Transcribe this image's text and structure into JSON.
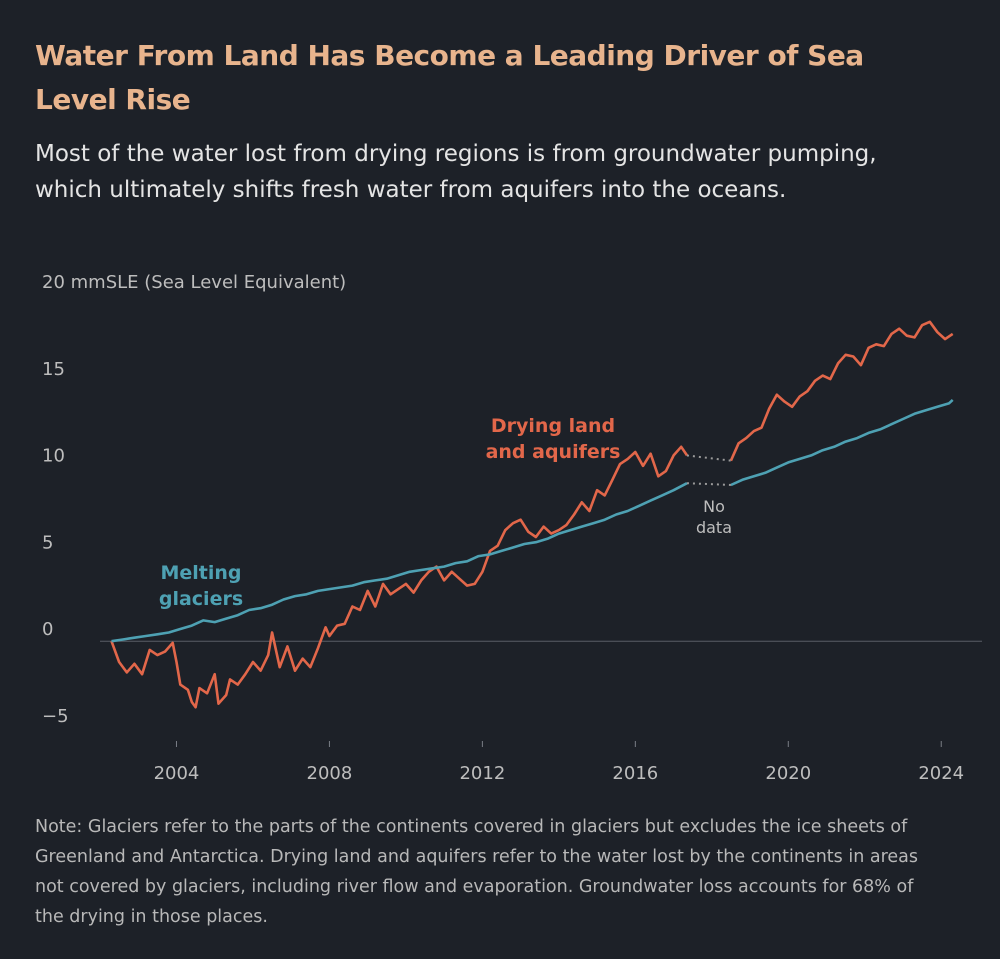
{
  "header": {
    "title": "Water From Land Has Become a Leading Driver of Sea Level Rise",
    "subtitle": "Most of the water lost from drying regions is from groundwater pumping, which ultimately shifts fresh water from aquifers into the oceans."
  },
  "note": "Note: Glaciers refer to the parts of the continents covered in glaciers but excludes the ice sheets of Greenland and Antarctica. Drying land and aquifers refer to the water lost by the continents in areas not covered by glaciers, including river flow and evaporation. Groundwater loss accounts for 68% of the drying in those places.",
  "colors": {
    "background": "#1d2128",
    "drying": "#e2674a",
    "glaciers": "#4ea1b3",
    "title": "#e8b48d",
    "gap": "#9a9a9a"
  },
  "chart_data": {
    "type": "line",
    "ylabel": "mmSLE (Sea Level Equivalent)",
    "ylim": [
      -5,
      20
    ],
    "xlim": [
      2002,
      2024.7
    ],
    "y_ticks": [
      {
        "value": 20,
        "label": "20 mmSLE (Sea Level Equivalent)"
      },
      {
        "value": 15,
        "label": "15"
      },
      {
        "value": 10,
        "label": "10"
      },
      {
        "value": 5,
        "label": "5"
      },
      {
        "value": 0,
        "label": "0"
      },
      {
        "value": -5,
        "label": "−5"
      }
    ],
    "x_ticks": [
      {
        "value": 2004,
        "label": "2004"
      },
      {
        "value": 2008,
        "label": "2008"
      },
      {
        "value": 2012,
        "label": "2012"
      },
      {
        "value": 2016,
        "label": "2016"
      },
      {
        "value": 2020,
        "label": "2020"
      },
      {
        "value": 2024,
        "label": "2024"
      }
    ],
    "gap_label": [
      "No",
      "data"
    ],
    "gap": [
      2017.5,
      2018.5
    ],
    "series": [
      {
        "name": "Drying land and aquifers",
        "label_lines": [
          "Drying land",
          "and aquifers"
        ],
        "points": [
          [
            2002.3,
            0
          ],
          [
            2002.5,
            -1.2
          ],
          [
            2002.7,
            -1.8
          ],
          [
            2002.9,
            -1.3
          ],
          [
            2003.1,
            -1.9
          ],
          [
            2003.3,
            -0.5
          ],
          [
            2003.5,
            -0.8
          ],
          [
            2003.7,
            -0.6
          ],
          [
            2003.9,
            -0.1
          ],
          [
            2004.0,
            -1.2
          ],
          [
            2004.1,
            -2.5
          ],
          [
            2004.3,
            -2.8
          ],
          [
            2004.4,
            -3.5
          ],
          [
            2004.5,
            -3.8
          ],
          [
            2004.6,
            -2.7
          ],
          [
            2004.8,
            -3.0
          ],
          [
            2005.0,
            -1.9
          ],
          [
            2005.1,
            -3.6
          ],
          [
            2005.3,
            -3.1
          ],
          [
            2005.4,
            -2.2
          ],
          [
            2005.6,
            -2.5
          ],
          [
            2005.8,
            -1.9
          ],
          [
            2006.0,
            -1.2
          ],
          [
            2006.2,
            -1.7
          ],
          [
            2006.4,
            -0.8
          ],
          [
            2006.5,
            0.5
          ],
          [
            2006.7,
            -1.5
          ],
          [
            2006.9,
            -0.3
          ],
          [
            2007.1,
            -1.7
          ],
          [
            2007.3,
            -1.0
          ],
          [
            2007.5,
            -1.5
          ],
          [
            2007.7,
            -0.4
          ],
          [
            2007.9,
            0.8
          ],
          [
            2008.0,
            0.3
          ],
          [
            2008.2,
            0.9
          ],
          [
            2008.4,
            1.0
          ],
          [
            2008.6,
            2.0
          ],
          [
            2008.8,
            1.8
          ],
          [
            2009.0,
            2.9
          ],
          [
            2009.2,
            2.0
          ],
          [
            2009.4,
            3.3
          ],
          [
            2009.6,
            2.7
          ],
          [
            2009.8,
            3.0
          ],
          [
            2010.0,
            3.3
          ],
          [
            2010.2,
            2.8
          ],
          [
            2010.4,
            3.5
          ],
          [
            2010.6,
            4.0
          ],
          [
            2010.8,
            4.3
          ],
          [
            2011.0,
            3.5
          ],
          [
            2011.2,
            4.0
          ],
          [
            2011.4,
            3.6
          ],
          [
            2011.6,
            3.2
          ],
          [
            2011.8,
            3.3
          ],
          [
            2012.0,
            4.0
          ],
          [
            2012.2,
            5.2
          ],
          [
            2012.4,
            5.5
          ],
          [
            2012.6,
            6.4
          ],
          [
            2012.8,
            6.8
          ],
          [
            2013.0,
            7.0
          ],
          [
            2013.2,
            6.3
          ],
          [
            2013.4,
            6.0
          ],
          [
            2013.6,
            6.6
          ],
          [
            2013.8,
            6.2
          ],
          [
            2014.0,
            6.4
          ],
          [
            2014.2,
            6.7
          ],
          [
            2014.4,
            7.3
          ],
          [
            2014.6,
            8.0
          ],
          [
            2014.8,
            7.5
          ],
          [
            2015.0,
            8.7
          ],
          [
            2015.2,
            8.4
          ],
          [
            2015.4,
            9.3
          ],
          [
            2015.6,
            10.2
          ],
          [
            2015.8,
            10.5
          ],
          [
            2016.0,
            10.9
          ],
          [
            2016.2,
            10.1
          ],
          [
            2016.4,
            10.8
          ],
          [
            2016.6,
            9.5
          ],
          [
            2016.8,
            9.8
          ],
          [
            2017.0,
            10.7
          ],
          [
            2017.2,
            11.2
          ],
          [
            2017.35,
            10.7
          ],
          null,
          [
            2018.5,
            10.4
          ],
          [
            2018.7,
            11.4
          ],
          [
            2018.9,
            11.7
          ],
          [
            2019.1,
            12.1
          ],
          [
            2019.3,
            12.3
          ],
          [
            2019.5,
            13.4
          ],
          [
            2019.7,
            14.2
          ],
          [
            2019.9,
            13.8
          ],
          [
            2020.1,
            13.5
          ],
          [
            2020.3,
            14.1
          ],
          [
            2020.5,
            14.4
          ],
          [
            2020.7,
            15.0
          ],
          [
            2020.9,
            15.3
          ],
          [
            2021.1,
            15.1
          ],
          [
            2021.3,
            16.0
          ],
          [
            2021.5,
            16.5
          ],
          [
            2021.7,
            16.4
          ],
          [
            2021.9,
            15.9
          ],
          [
            2022.1,
            16.9
          ],
          [
            2022.3,
            17.1
          ],
          [
            2022.5,
            17.0
          ],
          [
            2022.7,
            17.7
          ],
          [
            2022.9,
            18.0
          ],
          [
            2023.1,
            17.6
          ],
          [
            2023.3,
            17.5
          ],
          [
            2023.5,
            18.2
          ],
          [
            2023.7,
            18.4
          ],
          [
            2023.9,
            17.8
          ],
          [
            2024.1,
            17.4
          ],
          [
            2024.3,
            17.7
          ]
        ]
      },
      {
        "name": "Melting glaciers",
        "label_lines": [
          "Melting",
          "glaciers"
        ],
        "points": [
          [
            2002.3,
            0
          ],
          [
            2002.6,
            0.1
          ],
          [
            2002.9,
            0.2
          ],
          [
            2003.2,
            0.3
          ],
          [
            2003.5,
            0.4
          ],
          [
            2003.8,
            0.5
          ],
          [
            2004.1,
            0.7
          ],
          [
            2004.4,
            0.9
          ],
          [
            2004.7,
            1.2
          ],
          [
            2005.0,
            1.1
          ],
          [
            2005.3,
            1.3
          ],
          [
            2005.6,
            1.5
          ],
          [
            2005.9,
            1.8
          ],
          [
            2006.2,
            1.9
          ],
          [
            2006.5,
            2.1
          ],
          [
            2006.8,
            2.4
          ],
          [
            2007.1,
            2.6
          ],
          [
            2007.4,
            2.7
          ],
          [
            2007.7,
            2.9
          ],
          [
            2008.0,
            3.0
          ],
          [
            2008.3,
            3.1
          ],
          [
            2008.6,
            3.2
          ],
          [
            2008.9,
            3.4
          ],
          [
            2009.2,
            3.5
          ],
          [
            2009.5,
            3.6
          ],
          [
            2009.8,
            3.8
          ],
          [
            2010.1,
            4.0
          ],
          [
            2010.4,
            4.1
          ],
          [
            2010.7,
            4.2
          ],
          [
            2011.0,
            4.3
          ],
          [
            2011.3,
            4.5
          ],
          [
            2011.6,
            4.6
          ],
          [
            2011.9,
            4.9
          ],
          [
            2012.2,
            5.0
          ],
          [
            2012.5,
            5.2
          ],
          [
            2012.8,
            5.4
          ],
          [
            2013.1,
            5.6
          ],
          [
            2013.4,
            5.7
          ],
          [
            2013.7,
            5.9
          ],
          [
            2014.0,
            6.2
          ],
          [
            2014.3,
            6.4
          ],
          [
            2014.6,
            6.6
          ],
          [
            2014.9,
            6.8
          ],
          [
            2015.2,
            7.0
          ],
          [
            2015.5,
            7.3
          ],
          [
            2015.8,
            7.5
          ],
          [
            2016.1,
            7.8
          ],
          [
            2016.4,
            8.1
          ],
          [
            2016.7,
            8.4
          ],
          [
            2017.0,
            8.7
          ],
          [
            2017.35,
            9.1
          ],
          null,
          [
            2018.5,
            9.0
          ],
          [
            2018.8,
            9.3
          ],
          [
            2019.1,
            9.5
          ],
          [
            2019.4,
            9.7
          ],
          [
            2019.7,
            10.0
          ],
          [
            2020.0,
            10.3
          ],
          [
            2020.3,
            10.5
          ],
          [
            2020.6,
            10.7
          ],
          [
            2020.9,
            11.0
          ],
          [
            2021.2,
            11.2
          ],
          [
            2021.5,
            11.5
          ],
          [
            2021.8,
            11.7
          ],
          [
            2022.1,
            12.0
          ],
          [
            2022.4,
            12.2
          ],
          [
            2022.7,
            12.5
          ],
          [
            2023.0,
            12.8
          ],
          [
            2023.3,
            13.1
          ],
          [
            2023.6,
            13.3
          ],
          [
            2023.9,
            13.5
          ],
          [
            2024.2,
            13.7
          ],
          [
            2024.3,
            13.9
          ]
        ]
      }
    ]
  }
}
